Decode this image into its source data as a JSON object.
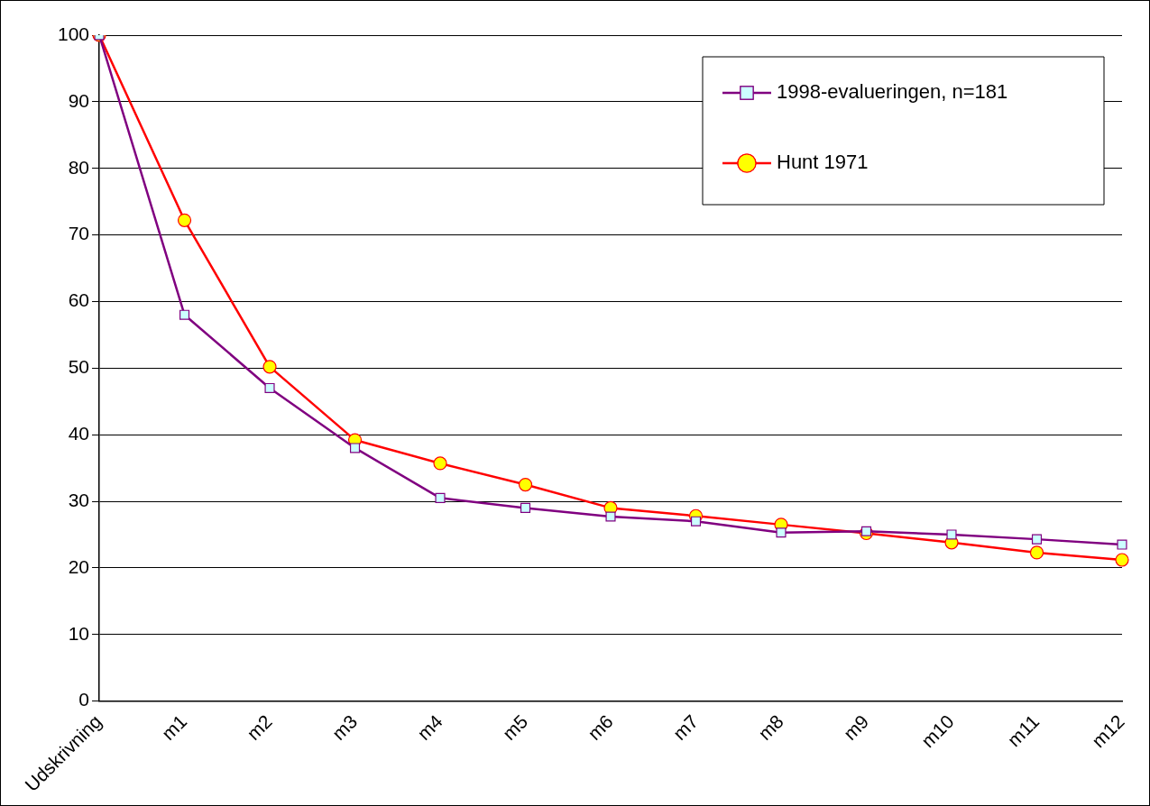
{
  "chart_data": {
    "type": "line",
    "categories": [
      "Udskrivning",
      "m1",
      "m2",
      "m3",
      "m4",
      "m5",
      "m6",
      "m7",
      "m8",
      "m9",
      "m10",
      "m11",
      "m12"
    ],
    "series": [
      {
        "name": "1998-evalueringen, n=181",
        "color": "#800080",
        "marker": "square",
        "values": [
          100,
          58,
          47,
          38,
          30.5,
          29,
          27.7,
          27,
          25.3,
          25.5,
          25,
          24.3,
          23.5
        ]
      },
      {
        "name": "Hunt 1971",
        "color": "#ff0000",
        "marker": "circle",
        "values": [
          100,
          72.2,
          50.2,
          39.2,
          35.7,
          32.5,
          29,
          27.8,
          26.5,
          25.2,
          23.8,
          22.3,
          21.2
        ]
      }
    ],
    "ylim": [
      0,
      100
    ],
    "yticks": [
      0,
      10,
      20,
      30,
      40,
      50,
      60,
      70,
      80,
      90,
      100
    ],
    "grid": "y",
    "legend": "top right"
  }
}
